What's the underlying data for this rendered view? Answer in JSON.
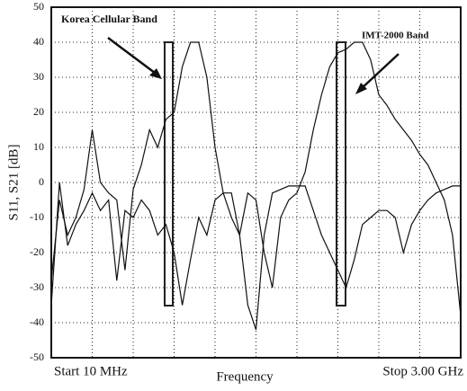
{
  "chart_data": {
    "type": "line",
    "ylabel": "S11, S21 [dB]",
    "xlabel": "Frequency",
    "x_start_label": "Start 10 MHz",
    "x_stop_label": "Stop 3.00 GHz",
    "annotations": [
      "Korea Cellular Band",
      "IMT-2000 Band"
    ],
    "ylim": [
      -50,
      50
    ],
    "yticks": [
      -50,
      -40,
      -30,
      -20,
      -10,
      0,
      10,
      20,
      30,
      40,
      50
    ],
    "grid": true,
    "series": [
      {
        "color": "#111111",
        "values": [
          -28,
          -5,
          -15,
          -10,
          -2,
          15,
          0,
          -3,
          -5,
          -25,
          -2,
          5,
          15,
          10,
          18,
          20,
          33,
          40,
          40,
          30,
          10,
          -3,
          -10,
          -15,
          -3,
          -5,
          -20,
          -30,
          -10,
          -5,
          -3,
          3,
          15,
          25,
          33,
          37,
          38,
          40,
          40,
          35,
          25,
          22,
          18,
          15,
          12,
          8,
          5,
          0,
          -5,
          -15,
          -38
        ]
      },
      {
        "color": "#111111",
        "values": [
          -35,
          0,
          -18,
          -12,
          -8,
          -3,
          -8,
          -5,
          -28,
          -8,
          -10,
          -5,
          -8,
          -15,
          -12,
          -20,
          -35,
          -22,
          -10,
          -15,
          -5,
          -3,
          -3,
          -15,
          -35,
          -42,
          -15,
          -3,
          -2,
          -1,
          -1,
          -1,
          -8,
          -15,
          -20,
          -25,
          -30,
          -22,
          -12,
          -10,
          -8,
          -8,
          -10,
          -20,
          -12,
          -8,
          -5,
          -3,
          -2,
          -1,
          -1
        ]
      }
    ]
  }
}
